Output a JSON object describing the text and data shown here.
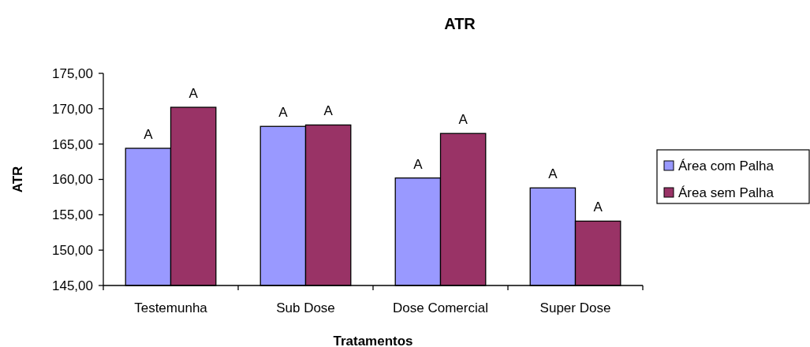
{
  "chart_data": {
    "type": "bar",
    "title": "ATR",
    "xlabel": "Tratamentos",
    "ylabel": "ATR",
    "categories": [
      "Testemunha",
      "Sub Dose",
      "Dose Comercial",
      "Super Dose"
    ],
    "series": [
      {
        "name": "Área com Palha",
        "color": "#9999ff",
        "values": [
          164.4,
          167.5,
          160.2,
          158.8
        ],
        "value_labels": [
          "A",
          "A",
          "A",
          "A"
        ]
      },
      {
        "name": "Área sem Palha",
        "color": "#993366",
        "values": [
          170.2,
          167.7,
          166.5,
          154.1
        ],
        "value_labels": [
          "A",
          "A",
          "A",
          "A"
        ]
      }
    ],
    "ylim": [
      145,
      175
    ],
    "yticks": [
      {
        "value": 145,
        "label": "145,00"
      },
      {
        "value": 150,
        "label": "150,00"
      },
      {
        "value": 155,
        "label": "155,00"
      },
      {
        "value": 160,
        "label": "160,00"
      },
      {
        "value": 165,
        "label": "165,00"
      },
      {
        "value": 170,
        "label": "170,00"
      },
      {
        "value": 175,
        "label": "175,00"
      }
    ],
    "grid": false,
    "legend": "right"
  }
}
